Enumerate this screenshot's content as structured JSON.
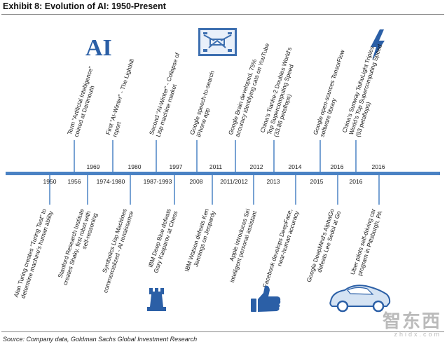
{
  "header": {
    "title": "Exhibit 8: Evolution of AI: 1950-Present"
  },
  "logo_text": "AI",
  "timeline": {
    "top_events": [
      {
        "year": "1969",
        "text": [
          "Term “Artificial Intelligence”",
          "coined at Dartmouth"
        ]
      },
      {
        "year": "1980",
        "text": [
          "First “AI-Winter” - The Lighthill",
          "report"
        ]
      },
      {
        "year": "1997",
        "text": [
          "Second “AI-Winter” - Collapse of",
          "Lisp machine market"
        ]
      },
      {
        "year": "2011",
        "text": [
          "Google speech-to-search",
          "iPhone app"
        ]
      },
      {
        "year": "2012",
        "text": [
          "Google Brain developed, 75%",
          "accuracy identifying cats on YouTube"
        ]
      },
      {
        "year": "2014",
        "text": [
          "China’s Tianhe-2 Doubles World’s",
          "Top Supercomputing Speed",
          "(33.86 petaflops)"
        ]
      },
      {
        "year": "2016",
        "text": [
          "Google open-sources TensorFlow",
          "software library"
        ]
      },
      {
        "year": "2016",
        "text": [
          "China’s Sunway TaihuLight Triples",
          "World’s Top Supercomputing Speed",
          "(93 petaflops)"
        ]
      }
    ],
    "bottom_events": [
      {
        "year": "1950",
        "text": [
          "Alan Turing creates “Turing Test” to",
          "determine machine’s human ability"
        ]
      },
      {
        "year": "1956",
        "text": [
          "Stanford Research Institute",
          "creates Shaky, first robot with",
          "self-reasoning"
        ]
      },
      {
        "year": "1974-1980",
        "text": [
          "Symbolics Lisp Machines",
          "commercialized - AI renaissance"
        ]
      },
      {
        "year": "1987-1993",
        "text": [
          "IBM Deep Blue defeats",
          "Gary Kasparov at Chess"
        ]
      },
      {
        "year": "2008",
        "text": [
          "IBM Watson defeats Ken",
          "Jennings on Jeopardy"
        ]
      },
      {
        "year": "2011/2012",
        "text": [
          "Apple introduces Siri",
          "intelligent personal assistant"
        ]
      },
      {
        "year": "2013",
        "text": [
          "Facebook develops DeepFace,",
          "near-human accuracy"
        ]
      },
      {
        "year": "2015",
        "text": [
          "Google DeepMind’s AlphaGo",
          "defeats Lee Sedol at Go"
        ]
      },
      {
        "year": "2016",
        "text": [
          "Uber pilots self-driving car",
          "program in Pittsburgh, PA"
        ]
      }
    ]
  },
  "icons": [
    "ai-logo",
    "server-icon",
    "lightning-icon",
    "chess-rook-icon",
    "thumbs-up-icon",
    "car-icon"
  ],
  "colors": {
    "timeline": "#4a82c4",
    "accent": "#2b5fa6"
  },
  "source": "Source: Company data, Goldman Sachs Global Investment Research",
  "watermark": {
    "text": "智东西",
    "url": "zhidx.com"
  }
}
